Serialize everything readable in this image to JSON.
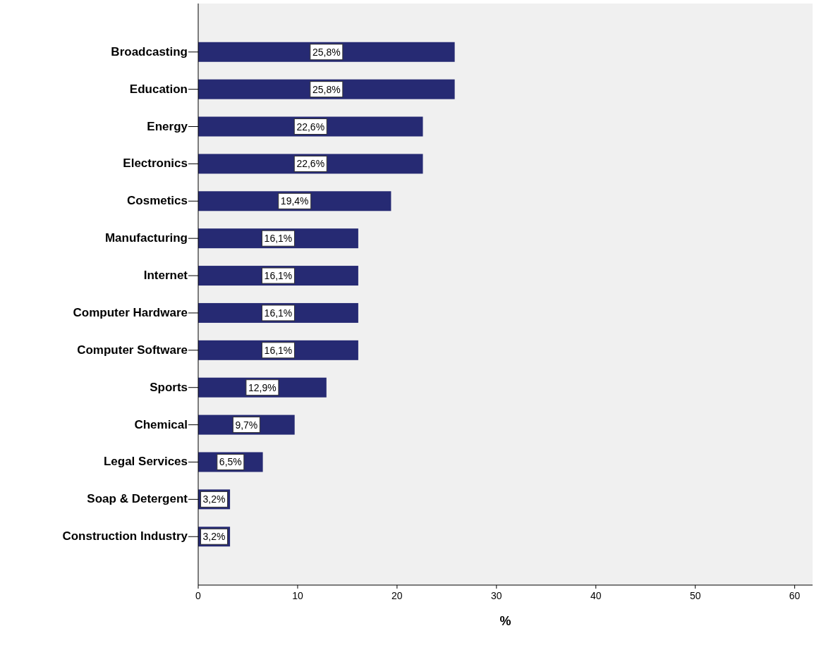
{
  "chart_data": {
    "type": "bar",
    "orientation": "horizontal",
    "xlabel": "%",
    "categories": [
      "Broadcasting",
      "Education",
      "Energy",
      "Electronics",
      "Cosmetics",
      "Manufacturing",
      "Internet",
      "Computer Hardware",
      "Computer Software",
      "Sports",
      "Chemical",
      "Legal Services",
      "Soap & Detergent",
      "Construction Industry"
    ],
    "values": [
      25.8,
      25.8,
      22.6,
      22.6,
      19.4,
      16.1,
      16.1,
      16.1,
      16.1,
      12.9,
      9.7,
      6.5,
      3.2,
      3.2
    ],
    "value_labels": [
      "25,8%",
      "25,8%",
      "22,6%",
      "22,6%",
      "19,4%",
      "16,1%",
      "16,1%",
      "16,1%",
      "16,1%",
      "12,9%",
      "9,7%",
      "6,5%",
      "3,2%",
      "3,2%"
    ],
    "color": "#262a73",
    "xlim": [
      0,
      61.8
    ],
    "xticks": [
      0,
      10,
      20,
      30,
      40,
      50,
      60
    ]
  }
}
